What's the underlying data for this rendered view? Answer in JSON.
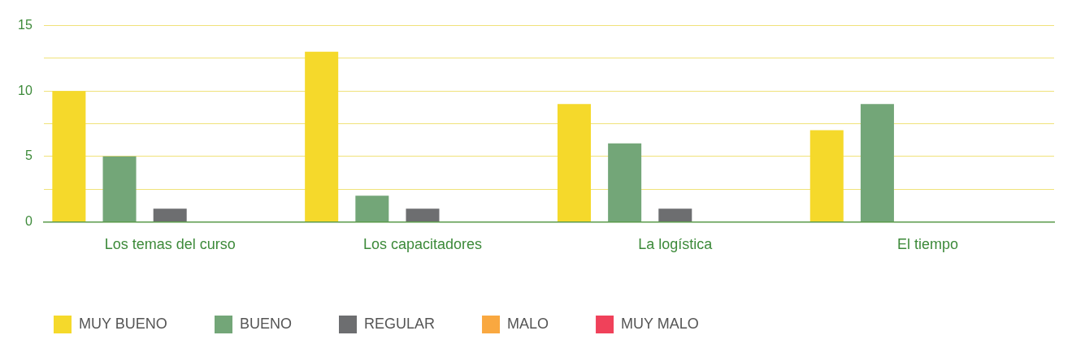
{
  "chart_data": {
    "type": "bar",
    "categories": [
      "Los temas del curso",
      "Los capacitadores",
      "La logística",
      "El tiempo"
    ],
    "series": [
      {
        "name": "MUY BUENO",
        "color": "#f5d92b",
        "values": [
          10,
          13,
          9,
          7
        ]
      },
      {
        "name": "BUENO",
        "color": "#73a678",
        "values": [
          5,
          2,
          6,
          9
        ]
      },
      {
        "name": "REGULAR",
        "color": "#6d6e70",
        "values": [
          1,
          1,
          1,
          0
        ]
      },
      {
        "name": "MALO",
        "color": "#f9a840",
        "values": [
          0,
          0,
          0,
          0
        ]
      },
      {
        "name": "MUY MALO",
        "color": "#f0415a",
        "values": [
          0,
          0,
          0,
          0
        ]
      }
    ],
    "ylim": [
      0,
      15
    ],
    "yticks": [
      0,
      {
        "value": 2.5,
        "label": null
      },
      5,
      {
        "value": 7.5,
        "label": null
      },
      10,
      {
        "value": 12.5,
        "label": null
      },
      15
    ],
    "grid": "y",
    "legend": "bottom"
  }
}
